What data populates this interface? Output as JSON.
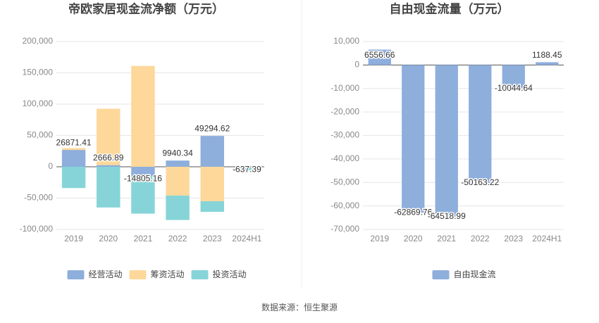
{
  "chart_data": [
    {
      "type": "stacked_bar",
      "title": "帝欧家居现金流净额（万元）",
      "categories": [
        "2019",
        "2020",
        "2021",
        "2022",
        "2023",
        "2024H1"
      ],
      "series": [
        {
          "name": "经营活动",
          "color": "#8eaedc",
          "values": [
            26871.41,
            2666.89,
            -14805.16,
            9940.34,
            49294.62,
            -637.39
          ]
        },
        {
          "name": "筹资活动",
          "color": "#fdd89a",
          "values": [
            3000,
            90000,
            161000,
            -46000,
            -55000,
            -500
          ]
        },
        {
          "name": "投资活动",
          "color": "#86d4d8",
          "values": [
            -34000,
            -65000,
            -60000,
            -39000,
            -17000,
            -5000
          ]
        }
      ],
      "ylim": [
        -100000,
        200000
      ],
      "yticks": [
        {
          "value": -100000,
          "label": "-100,000"
        },
        {
          "value": -50000,
          "label": "-50,000"
        },
        0,
        {
          "value": 50000,
          "label": "50,000"
        },
        {
          "value": 100000,
          "label": "100,000"
        },
        {
          "value": 150000,
          "label": "150,000"
        },
        {
          "value": 200000,
          "label": "200,000"
        }
      ],
      "grid": true,
      "legend": "bottom",
      "labels_series": 0
    },
    {
      "type": "bar",
      "title": "自由现金流量（万元）",
      "categories": [
        "2019",
        "2020",
        "2021",
        "2022",
        "2023",
        "2024H1"
      ],
      "series": [
        {
          "name": "自由现金流",
          "color": "#8eaedc",
          "values": [
            6556.66,
            -62869.76,
            -64518.99,
            -50163.22,
            -10044.64,
            1188.45
          ]
        }
      ],
      "ylim": [
        -70000,
        10000
      ],
      "yticks": [
        {
          "value": -70000,
          "label": "-70,000"
        },
        {
          "value": -60000,
          "label": "-60,000"
        },
        {
          "value": -50000,
          "label": "-50,000"
        },
        {
          "value": -40000,
          "label": "-40,000"
        },
        {
          "value": -30000,
          "label": "-30,000"
        },
        {
          "value": -20000,
          "label": "-20,000"
        },
        {
          "value": -10000,
          "label": "-10,000"
        },
        0,
        {
          "value": 10000,
          "label": "10,000"
        }
      ],
      "grid": true,
      "legend": "bottom",
      "labels_series": 0
    }
  ],
  "source": "数据来源：恒生聚源"
}
